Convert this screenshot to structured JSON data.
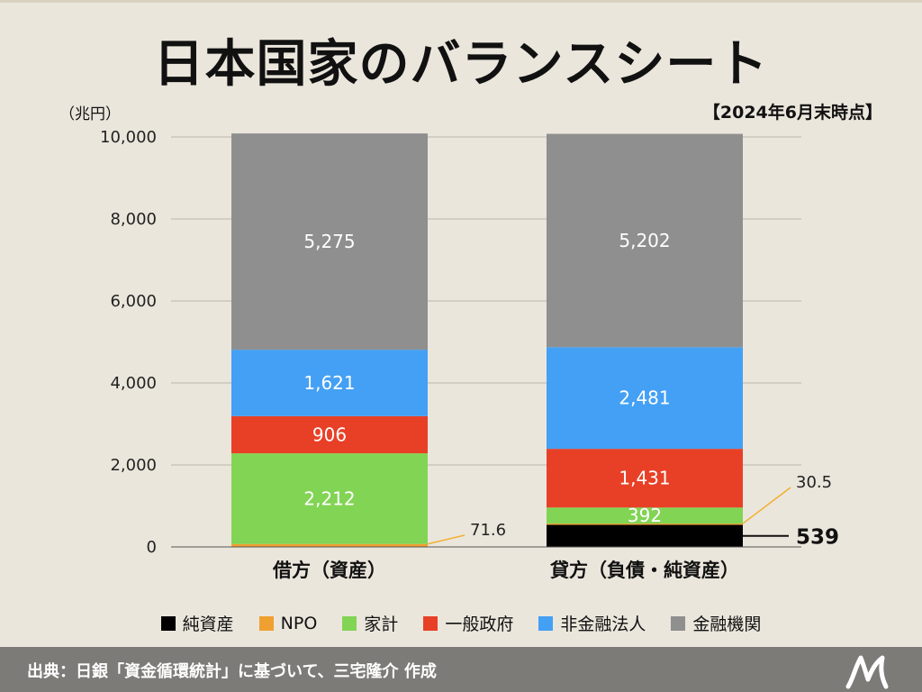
{
  "title": "日本国家のバランスシート",
  "unit_label": "（兆円）",
  "as_of": "【2024年6月末時点】",
  "footer": "出典：日銀「資金循環統計」に基づいて、三宅隆介 作成",
  "chart_data": {
    "type": "bar",
    "stacked": true,
    "categories": [
      "借方（資産）",
      "貸方（負債・純資産）"
    ],
    "ylim": [
      0,
      10000
    ],
    "yticks": [
      0,
      2000,
      4000,
      6000,
      8000,
      10000
    ],
    "ytick_labels": [
      "0",
      "2,000",
      "4,000",
      "6,000",
      "8,000",
      "10,000"
    ],
    "series": [
      {
        "name": "純資産",
        "color": "#000000",
        "values": [
          0,
          539
        ],
        "labels": [
          "",
          "539"
        ]
      },
      {
        "name": "NPO",
        "color": "#f0a030",
        "values": [
          71.6,
          30.5
        ],
        "labels": [
          "71.6",
          "30.5"
        ]
      },
      {
        "name": "家計",
        "color": "#82d454",
        "values": [
          2212,
          392
        ],
        "labels": [
          "2,212",
          "392"
        ]
      },
      {
        "name": "一般政府",
        "color": "#e84027",
        "values": [
          906,
          1431
        ],
        "labels": [
          "906",
          "1,431"
        ]
      },
      {
        "name": "非金融法人",
        "color": "#44a0f4",
        "values": [
          1621,
          2481
        ],
        "labels": [
          "1,621",
          "2,481"
        ]
      },
      {
        "name": "金融機関",
        "color": "#8f8f8f",
        "values": [
          5275,
          5202
        ],
        "labels": [
          "5,275",
          "5,202"
        ]
      }
    ],
    "legend_position": "bottom",
    "grid": true
  }
}
